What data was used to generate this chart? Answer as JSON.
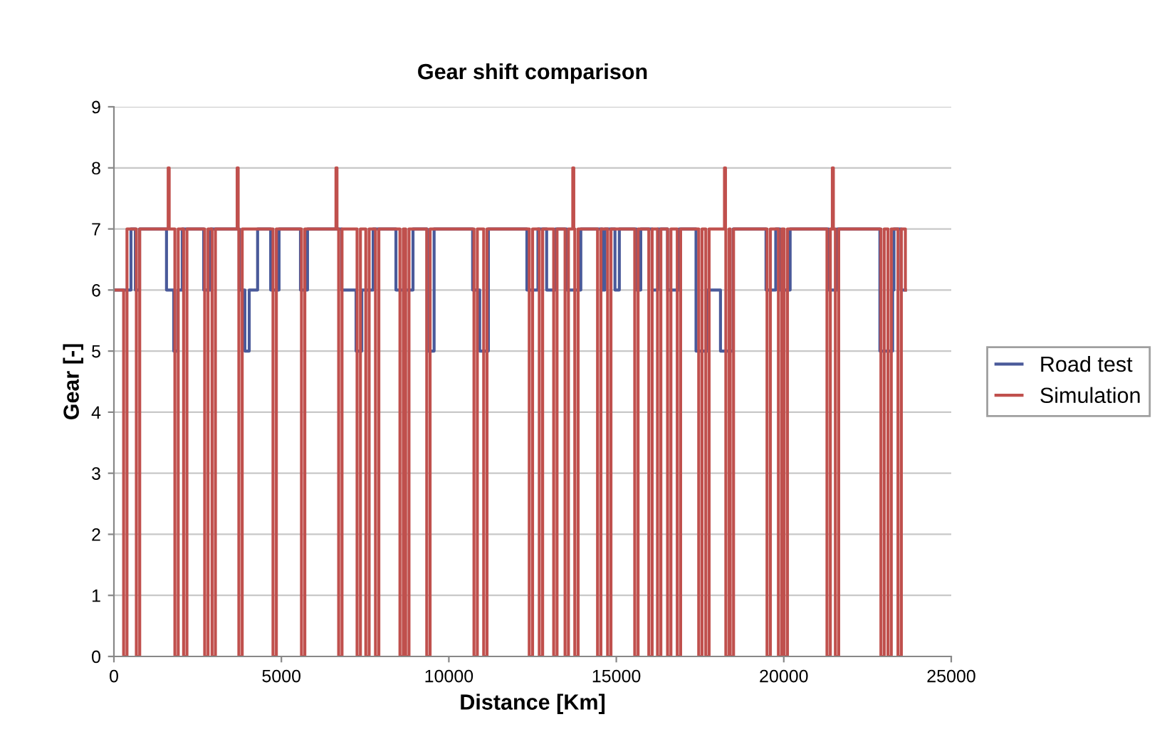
{
  "chart_data": {
    "type": "step",
    "title": "Gear shift comparison",
    "xlabel": "Distance [Km]",
    "ylabel": "Gear [-]",
    "xlim": [
      0,
      25000
    ],
    "xticks": [
      0,
      5000,
      10000,
      15000,
      20000,
      25000
    ],
    "ylim": [
      0,
      9
    ],
    "yticks": [
      0,
      1,
      2,
      3,
      4,
      5,
      6,
      7,
      8,
      9
    ],
    "grid": "y",
    "legend": "right",
    "series": [
      {
        "name": "Road test",
        "color": "#4a5a9a",
        "x": [
          0,
          510,
          640,
          765,
          1570,
          1785,
          1910,
          2040,
          2680,
          2890,
          3740,
          3910,
          4040,
          4290,
          4680,
          4930,
          5570,
          5780,
          6800,
          7230,
          7400,
          7740,
          8420,
          8930,
          9350,
          9560,
          10710,
          10920,
          11180,
          12330,
          12660,
          12920,
          13180,
          13520,
          13940,
          14580,
          14660,
          14960,
          15090,
          15600,
          15730,
          16070,
          16240,
          16530,
          16870,
          17380,
          17720,
          18110,
          18490,
          19470,
          19760,
          19890,
          20190,
          21340,
          21590,
          22870,
          23250,
          23290,
          23500,
          23630
        ],
        "values": [
          6,
          7,
          6,
          7,
          6,
          5,
          6,
          7,
          6,
          7,
          6,
          5,
          6,
          7,
          6,
          7,
          6,
          7,
          6,
          5,
          6,
          7,
          6,
          7,
          5,
          7,
          6,
          5,
          7,
          6,
          7,
          6,
          7,
          6,
          7,
          6,
          7,
          6,
          7,
          6,
          7,
          6,
          7,
          6,
          7,
          5,
          6,
          5,
          7,
          6,
          7,
          6,
          7,
          6,
          7,
          5,
          6,
          7,
          6,
          6
        ]
      },
      {
        "name": "Simulation",
        "color": "#c0504d",
        "x": [
          0,
          290,
          390,
          670,
          770,
          1620,
          1650,
          1820,
          1920,
          2080,
          2180,
          2710,
          2810,
          2930,
          3030,
          3680,
          3710,
          3730,
          3830,
          4750,
          4850,
          5600,
          5700,
          6630,
          6660,
          6710,
          6810,
          7260,
          7360,
          7520,
          7620,
          7810,
          7910,
          8540,
          8640,
          8710,
          8810,
          9340,
          9440,
          10750,
          10850,
          11040,
          11140,
          12400,
          12500,
          12700,
          12800,
          13130,
          13230,
          13470,
          13570,
          13700,
          13730,
          13760,
          13860,
          14440,
          14540,
          14740,
          14840,
          15550,
          15650,
          15970,
          16070,
          16230,
          16330,
          16530,
          16630,
          16820,
          16920,
          17460,
          17560,
          17670,
          17770,
          18230,
          18260,
          18270,
          18370,
          18400,
          18500,
          19500,
          19600,
          19840,
          19940,
          20010,
          20110,
          21290,
          21390,
          21450,
          21480,
          21540,
          21640,
          22900,
          23000,
          23110,
          23210,
          23410,
          23510,
          23630
        ],
        "values": [
          6,
          0,
          7,
          0,
          7,
          8,
          7,
          0,
          7,
          0,
          7,
          0,
          7,
          0,
          7,
          8,
          7,
          0,
          7,
          0,
          7,
          0,
          7,
          8,
          7,
          0,
          7,
          0,
          7,
          0,
          7,
          0,
          7,
          0,
          7,
          0,
          7,
          0,
          7,
          0,
          7,
          0,
          7,
          0,
          7,
          0,
          7,
          0,
          7,
          0,
          7,
          8,
          7,
          0,
          7,
          0,
          7,
          0,
          7,
          0,
          7,
          0,
          7,
          0,
          7,
          0,
          7,
          0,
          7,
          0,
          7,
          0,
          7,
          8,
          7,
          0,
          7,
          0,
          7,
          0,
          7,
          0,
          7,
          0,
          7,
          0,
          7,
          8,
          7,
          0,
          7,
          0,
          7,
          0,
          7,
          0,
          7,
          6
        ]
      }
    ]
  }
}
